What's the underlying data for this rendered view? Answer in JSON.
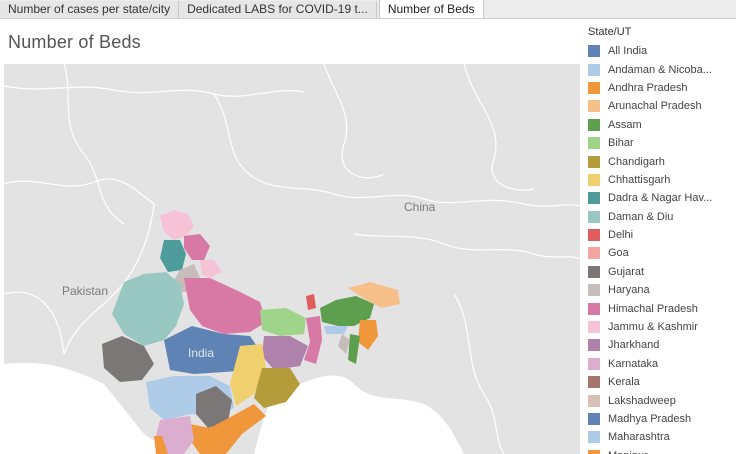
{
  "tabs": [
    {
      "label": "Number of cases per state/city"
    },
    {
      "label": "Dedicated LABS for COVID-19 t..."
    },
    {
      "label": "Number of Beds"
    }
  ],
  "sheet_title": "Number of Beds",
  "map": {
    "labels": {
      "china": "China",
      "pakistan": "Pakistan",
      "india": "India"
    }
  },
  "legend": {
    "title": "State/UT",
    "items": [
      {
        "label": "All India",
        "color": "#5f83b4"
      },
      {
        "label": "Andaman & Nicoba...",
        "color": "#aecbe8"
      },
      {
        "label": "Andhra Pradesh",
        "color": "#f0973b"
      },
      {
        "label": "Arunachal Pradesh",
        "color": "#f7c08a"
      },
      {
        "label": "Assam",
        "color": "#5e9e4f"
      },
      {
        "label": "Bihar",
        "color": "#9fd48a"
      },
      {
        "label": "Chandigarh",
        "color": "#b49c3a"
      },
      {
        "label": "Chhattisgarh",
        "color": "#f0cf6f"
      },
      {
        "label": "Dadra & Nagar Hav...",
        "color": "#4e9b9b"
      },
      {
        "label": "Daman & Diu",
        "color": "#98c8c1"
      },
      {
        "label": "Delhi",
        "color": "#e05d5d"
      },
      {
        "label": "Goa",
        "color": "#f3a5a1"
      },
      {
        "label": "Gujarat",
        "color": "#7c7777"
      },
      {
        "label": "Haryana",
        "color": "#c6bdbb"
      },
      {
        "label": "Himachal Pradesh",
        "color": "#d878a4"
      },
      {
        "label": "Jammu & Kashmir",
        "color": "#f5c3d5"
      },
      {
        "label": "Jharkhand",
        "color": "#ae82ab"
      },
      {
        "label": "Karnataka",
        "color": "#dbaed0"
      },
      {
        "label": "Kerala",
        "color": "#a5746b"
      },
      {
        "label": "Lakshadweep",
        "color": "#d8c0b6"
      },
      {
        "label": "Madhya Pradesh",
        "color": "#5f83b4"
      },
      {
        "label": "Maharashtra",
        "color": "#aecbe8"
      },
      {
        "label": "Manipur",
        "color": "#f0973b"
      }
    ]
  }
}
